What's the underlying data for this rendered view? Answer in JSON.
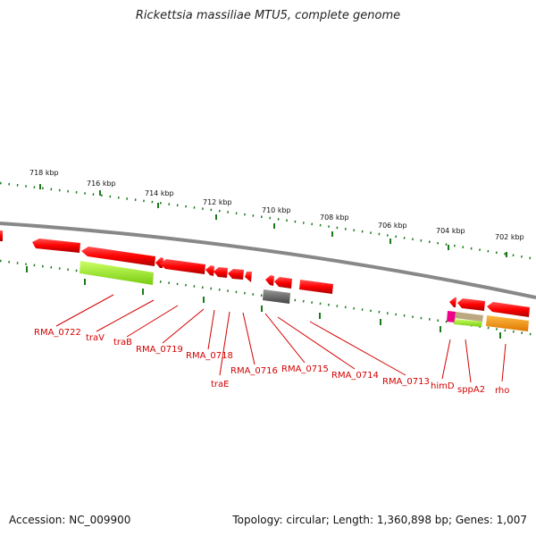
{
  "title": "Rickettsia massiliae MTU5, complete genome",
  "footer": {
    "accession": "Accession: NC_009900",
    "summary": "Topology: circular; Length: 1,360,898 bp; Genes: 1,007"
  },
  "scale_labels": [
    "718 kbp",
    "716 kbp",
    "714 kbp",
    "712 kbp",
    "710 kbp",
    "708 kbp",
    "706 kbp",
    "704 kbp",
    "702 kbp"
  ],
  "gene_labels": [
    "RMA_0722",
    "traV",
    "traB",
    "RMA_0719",
    "RMA_0718",
    "traE",
    "RMA_0716",
    "RMA_0715",
    "RMA_0714",
    "RMA_0713",
    "himD",
    "sppA2",
    "rho"
  ],
  "colors": {
    "gene": "#ff0000",
    "label": "#d40000",
    "backbone": "#888888",
    "ticks": "#1a7a1a",
    "feature_green": "#99ee22",
    "feature_gray": "#666666",
    "feature_orange": "#ff9900",
    "feature_magenta": "#ee0088",
    "feature_tan": "#bba880"
  }
}
